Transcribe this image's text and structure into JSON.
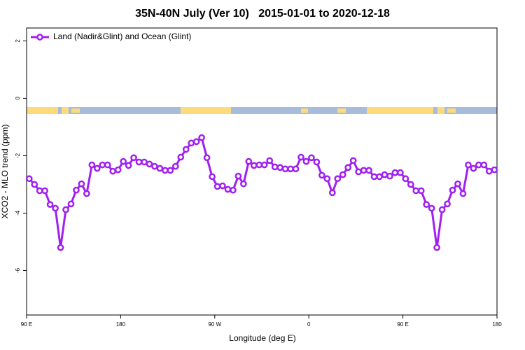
{
  "chart_data": {
    "type": "line",
    "title": "35N-40N July (Ver 10)   2015-01-01 to 2020-12-18",
    "x_label": "Longitude (deg E)",
    "y_label": "XCO2 - MLO trend (ppm)",
    "x": [
      92.5,
      97.5,
      102.5,
      107.5,
      112.5,
      117.5,
      122.5,
      127.5,
      132.5,
      137.5,
      142.5,
      147.5,
      152.5,
      157.5,
      162.5,
      167.5,
      172.5,
      177.5,
      182.5,
      187.5,
      192.5,
      197.5,
      202.5,
      207.5,
      212.5,
      217.5,
      222.5,
      227.5,
      232.5,
      237.5,
      242.5,
      247.5,
      252.5,
      257.5,
      262.5,
      267.5,
      272.5,
      277.5,
      282.5,
      287.5,
      292.5,
      297.5,
      302.5,
      307.5,
      312.5,
      317.5,
      322.5,
      327.5,
      332.5,
      337.5,
      342.5,
      347.5,
      352.5,
      357.5,
      362.5,
      367.5,
      372.5,
      377.5,
      382.5,
      387.5,
      392.5,
      397.5,
      402.5,
      407.5,
      412.5,
      417.5,
      422.5,
      427.5,
      432.5,
      437.5,
      442.5,
      447.5,
      452.5,
      457.5,
      462.5,
      467.5,
      472.5,
      477.5,
      482.5,
      487.5,
      492.5,
      497.5,
      502.5,
      507.5,
      512.5,
      517.5,
      522.5,
      527.5,
      532.5,
      537.5
    ],
    "series": [
      {
        "name": "Land (Nadir&Glint) and Ocean (Glint)",
        "color": "#a020f0",
        "values": [
          -2.8,
          -3.0,
          -3.22,
          -3.22,
          -3.7,
          -3.83,
          -5.2,
          -3.88,
          -3.68,
          -3.2,
          -2.98,
          -3.32,
          -2.32,
          -2.44,
          -2.32,
          -2.32,
          -2.54,
          -2.49,
          -2.2,
          -2.34,
          -2.07,
          -2.22,
          -2.22,
          -2.29,
          -2.37,
          -2.44,
          -2.51,
          -2.51,
          -2.37,
          -2.05,
          -1.78,
          -1.56,
          -1.51,
          -1.37,
          -2.07,
          -2.73,
          -3.07,
          -3.05,
          -3.17,
          -3.2,
          -2.71,
          -2.98,
          -2.2,
          -2.34,
          -2.32,
          -2.32,
          -2.17,
          -2.39,
          -2.41,
          -2.46,
          -2.46,
          -2.46,
          -2.05,
          -2.2,
          -2.07,
          -2.22,
          -2.68,
          -2.8,
          -3.29,
          -2.8,
          -2.66,
          -2.41,
          -2.17,
          -2.56,
          -2.51,
          -2.51,
          -2.73,
          -2.73,
          -2.66,
          -2.71,
          -2.59,
          -2.59,
          -2.8,
          -3.0,
          -3.22,
          -3.22,
          -3.7,
          -3.83,
          -5.2,
          -3.88,
          -3.68,
          -3.2,
          -2.98,
          -3.32,
          -2.32,
          -2.44,
          -2.32,
          -2.32,
          -2.54,
          -2.49
        ]
      }
    ],
    "xlim": [
      90,
      540
    ],
    "xticks": [
      {
        "value": 90,
        "label": "90 E"
      },
      180,
      {
        "value": 270,
        "label": "90 W"
      },
      {
        "value": 360,
        "label": "0"
      },
      {
        "value": 450,
        "label": "90 E"
      },
      {
        "value": 540,
        "label": "180"
      }
    ],
    "ylim": [
      -7.55,
      2.45
    ],
    "yticks": [
      2,
      0,
      -2,
      -4,
      -6
    ],
    "legend": "top-left"
  }
}
